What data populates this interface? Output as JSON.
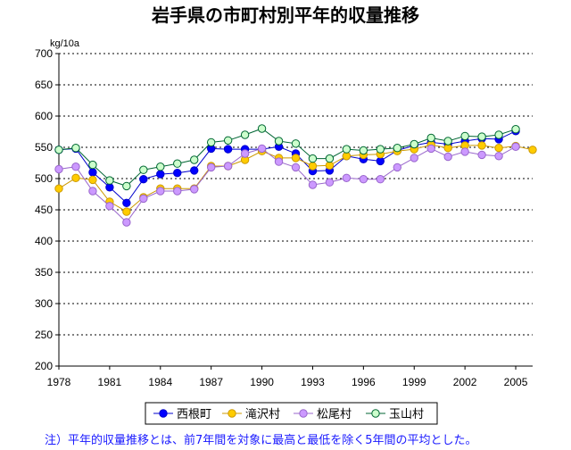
{
  "chart_data": {
    "type": "line",
    "title": "岩手県の市町村別平年的収量推移",
    "ylabel": "kg/10a",
    "ylim": [
      200,
      700
    ],
    "yticks": [
      200,
      250,
      300,
      350,
      400,
      450,
      500,
      550,
      600,
      650,
      700
    ],
    "xlim": [
      1978,
      2006
    ],
    "xticks": [
      1978,
      1981,
      1984,
      1987,
      1990,
      1993,
      1996,
      1999,
      2002,
      2005
    ],
    "grid": "horizontal-dotted",
    "legend_position": "bottom",
    "note": "注）平年的収量推移とは、前7年間を対象に最高と最低を除く5年間の平均とした。",
    "x": [
      1978,
      1979,
      1980,
      1981,
      1982,
      1983,
      1984,
      1985,
      1986,
      1987,
      1988,
      1989,
      1990,
      1991,
      1992,
      1993,
      1994,
      1995,
      1996,
      1997,
      1998,
      1999,
      2000,
      2001,
      2002,
      2003,
      2004,
      2005,
      2006
    ],
    "series": [
      {
        "name": "西根町",
        "color": "#0000cc",
        "marker_fill": "#0000ff",
        "values": [
          546,
          548,
          510,
          486,
          461,
          499,
          507,
          509,
          513,
          548,
          547,
          547,
          547,
          551,
          540,
          512,
          513,
          536,
          531,
          528,
          545,
          553,
          558,
          555,
          560,
          564,
          563,
          576,
          null
        ]
      },
      {
        "name": "滝沢村",
        "color": "#cc9900",
        "marker_fill": "#ffcc00",
        "values": [
          484,
          501,
          498,
          463,
          447,
          470,
          484,
          484,
          484,
          520,
          520,
          530,
          544,
          533,
          533,
          520,
          521,
          536,
          538,
          539,
          544,
          547,
          554,
          549,
          553,
          553,
          549,
          552,
          546
        ]
      },
      {
        "name": "松尾村",
        "color": "#9966cc",
        "marker_fill": "#cc99ff",
        "values": [
          515,
          519,
          480,
          456,
          430,
          468,
          480,
          480,
          483,
          518,
          520,
          540,
          548,
          527,
          518,
          490,
          494,
          501,
          499,
          499,
          518,
          533,
          548,
          535,
          543,
          538,
          536,
          551,
          null
        ]
      },
      {
        "name": "玉山村",
        "color": "#006633",
        "marker_fill": "#ccffcc",
        "values": [
          546,
          549,
          522,
          497,
          488,
          514,
          519,
          524,
          530,
          558,
          561,
          570,
          580,
          560,
          556,
          532,
          532,
          547,
          545,
          547,
          549,
          555,
          565,
          560,
          568,
          567,
          570,
          579,
          null
        ]
      }
    ]
  }
}
